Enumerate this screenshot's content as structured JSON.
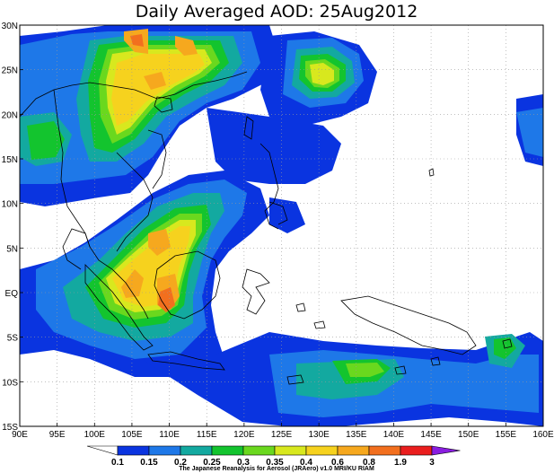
{
  "title": "Daily Averaged AOD: 25Aug2012",
  "credit": "The Japanese Reanalysis for Aerosol (JRAero) v1.0 MRI/KU RIAM",
  "map": {
    "lon_labels": [
      "90E",
      "95E",
      "100E",
      "105E",
      "110E",
      "115E",
      "120E",
      "125E",
      "130E",
      "135E",
      "140E",
      "145E",
      "150E",
      "155E",
      "160E"
    ],
    "lat_labels": [
      "30N",
      "25N",
      "20N",
      "15N",
      "10N",
      "5N",
      "EQ",
      "5S",
      "10S",
      "15S"
    ],
    "extent": {
      "lon": [
        90,
        160
      ],
      "lat": [
        -15,
        30
      ]
    }
  },
  "colorbar": {
    "levels": [
      "0.1",
      "0.15",
      "0.2",
      "0.25",
      "0.3",
      "0.35",
      "0.4",
      "0.6",
      "0.8",
      "1.9",
      "3"
    ],
    "colors": [
      "#0a34e0",
      "#1e78e8",
      "#13a9a0",
      "#13c42e",
      "#6ad81e",
      "#d8e81e",
      "#f6d21e",
      "#f6a81e",
      "#f26f1e",
      "#ea1e1e",
      "#8a1ee0"
    ]
  }
}
